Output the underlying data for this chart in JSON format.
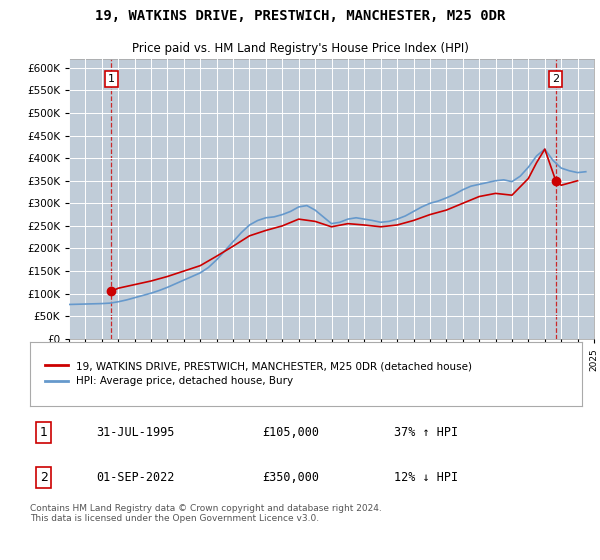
{
  "title": "19, WATKINS DRIVE, PRESTWICH, MANCHESTER, M25 0DR",
  "subtitle": "Price paid vs. HM Land Registry's House Price Index (HPI)",
  "sale1_date": "31-JUL-1995",
  "sale1_price": 105000,
  "sale1_hpi_pct": "37% ↑ HPI",
  "sale2_date": "01-SEP-2022",
  "sale2_price": 350000,
  "sale2_hpi_pct": "12% ↓ HPI",
  "legend_label_red": "19, WATKINS DRIVE, PRESTWICH, MANCHESTER, M25 0DR (detached house)",
  "legend_label_blue": "HPI: Average price, detached house, Bury",
  "footer": "Contains HM Land Registry data © Crown copyright and database right 2024.\nThis data is licensed under the Open Government Licence v3.0.",
  "ylim": [
    0,
    620000
  ],
  "yticks": [
    0,
    50000,
    100000,
    150000,
    200000,
    250000,
    300000,
    350000,
    400000,
    450000,
    500000,
    550000,
    600000
  ],
  "red_color": "#cc0000",
  "blue_color": "#6699cc",
  "plot_bg_color": "#dce6f1",
  "hatch_color": "#c0ccd8",
  "grid_color": "#ffffff",
  "years_hpi": [
    1993.0,
    1993.5,
    1994.0,
    1994.5,
    1995.0,
    1995.5,
    1996.0,
    1996.5,
    1997.0,
    1997.5,
    1998.0,
    1998.5,
    1999.0,
    1999.5,
    2000.0,
    2000.5,
    2001.0,
    2001.5,
    2002.0,
    2002.5,
    2003.0,
    2003.5,
    2004.0,
    2004.5,
    2005.0,
    2005.5,
    2006.0,
    2006.5,
    2007.0,
    2007.5,
    2008.0,
    2008.5,
    2009.0,
    2009.5,
    2010.0,
    2010.5,
    2011.0,
    2011.5,
    2012.0,
    2012.5,
    2013.0,
    2013.5,
    2014.0,
    2014.5,
    2015.0,
    2015.5,
    2016.0,
    2016.5,
    2017.0,
    2017.5,
    2018.0,
    2018.5,
    2019.0,
    2019.5,
    2020.0,
    2020.5,
    2021.0,
    2021.5,
    2022.0,
    2022.5,
    2023.0,
    2023.5,
    2024.0,
    2024.5
  ],
  "hpi_prices": [
    76000,
    76500,
    77000,
    77500,
    78000,
    79000,
    82000,
    86000,
    91000,
    96000,
    101000,
    107000,
    114000,
    122000,
    130000,
    138000,
    146000,
    158000,
    175000,
    195000,
    215000,
    235000,
    252000,
    262000,
    268000,
    270000,
    275000,
    282000,
    292000,
    295000,
    285000,
    270000,
    255000,
    258000,
    265000,
    268000,
    265000,
    262000,
    258000,
    260000,
    265000,
    272000,
    282000,
    292000,
    300000,
    305000,
    312000,
    320000,
    330000,
    338000,
    342000,
    346000,
    350000,
    352000,
    348000,
    360000,
    380000,
    405000,
    420000,
    395000,
    378000,
    372000,
    368000,
    370000
  ],
  "years_red": [
    1995.58,
    1996.0,
    1997.0,
    1998.0,
    1999.0,
    2000.0,
    2001.0,
    2002.0,
    2003.0,
    2004.0,
    2005.0,
    2006.0,
    2007.0,
    2008.0,
    2009.0,
    2010.0,
    2011.0,
    2012.0,
    2013.0,
    2014.0,
    2015.0,
    2016.0,
    2017.0,
    2018.0,
    2019.0,
    2020.0,
    2021.0,
    2021.5,
    2022.0,
    2022.67,
    2023.0,
    2023.5,
    2024.0
  ],
  "red_prices": [
    105000,
    112000,
    120000,
    128000,
    138000,
    150000,
    162000,
    183000,
    205000,
    228000,
    240000,
    250000,
    265000,
    260000,
    248000,
    255000,
    252000,
    248000,
    252000,
    262000,
    275000,
    285000,
    300000,
    315000,
    322000,
    318000,
    355000,
    390000,
    420000,
    350000,
    340000,
    345000,
    350000
  ],
  "sale1_x": 1995.58,
  "sale1_y": 105000,
  "sale2_x": 2022.67,
  "sale2_y": 350000,
  "xmin": 1993,
  "xmax": 2025
}
